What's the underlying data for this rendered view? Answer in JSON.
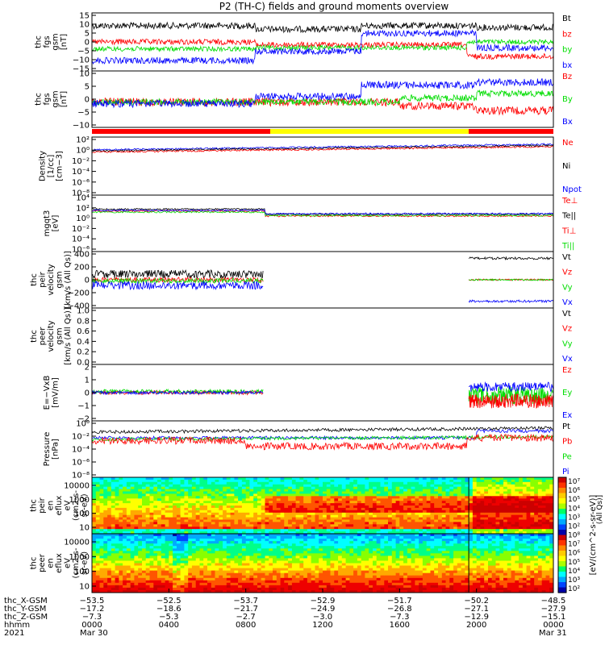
{
  "title": "P2 (TH-C) fields and ground moments overview",
  "colors": {
    "black": "#000000",
    "red": "#ff0000",
    "green": "#00dd00",
    "blue": "#0000ff",
    "yellow": "#ffff00"
  },
  "chart_data": [
    {
      "type": "line",
      "ylabel": [
        "thc",
        "fgs",
        "gsm",
        "[nT]"
      ],
      "ylim": [
        -15,
        15
      ],
      "yticks": [
        "15",
        "10",
        "5",
        "0",
        "−5",
        "−10",
        "−15"
      ],
      "legend": [
        {
          "name": "Bt",
          "color": "black"
        },
        {
          "name": "bz",
          "color": "red"
        },
        {
          "name": "by",
          "color": "green"
        },
        {
          "name": "bx",
          "color": "blue"
        }
      ]
    },
    {
      "type": "line",
      "ylabel": [
        "thc",
        "fgs",
        "gsm",
        "[nT]"
      ],
      "ylim": [
        -15,
        15
      ],
      "yticks": [
        "10",
        "5",
        "0",
        "−5",
        "−10"
      ],
      "legend": [
        {
          "name": "Bz",
          "color": "red"
        },
        {
          "name": "By",
          "color": "green"
        },
        {
          "name": "Bx",
          "color": "blue"
        }
      ]
    },
    {
      "type": "line",
      "ylabel": [
        "Density",
        "[1/cc]",
        "[cm−3]"
      ],
      "yscale": "log",
      "yticks": [
        "10²",
        "10⁰",
        "10⁻²",
        "10⁻⁴",
        "10⁻⁶",
        "10⁻⁸"
      ],
      "legend": [
        {
          "name": "Ne",
          "color": "red"
        },
        {
          "name": "Ni",
          "color": "black"
        },
        {
          "name": "Npot",
          "color": "blue"
        }
      ]
    },
    {
      "type": "line",
      "ylabel": [
        "mgqt3",
        "[eV]"
      ],
      "yscale": "log",
      "yticks": [
        "10⁴",
        "10²",
        "10⁰",
        "10⁻²",
        "10⁻⁴",
        "10⁻⁶"
      ],
      "legend": [
        {
          "name": "Te⊥",
          "color": "red"
        },
        {
          "name": "Te||",
          "color": "black"
        },
        {
          "name": "Ti⊥",
          "color": "red"
        },
        {
          "name": "Ti||",
          "color": "green"
        }
      ]
    },
    {
      "type": "line",
      "ylabel": [
        "thc",
        "peir",
        "velocity",
        "gsm",
        "[km/s (All Qs)]"
      ],
      "ylim": [
        -400,
        400
      ],
      "yticks": [
        "400",
        "200",
        "0",
        "−200",
        "−400"
      ],
      "legend": [
        {
          "name": "Vt",
          "color": "black"
        },
        {
          "name": "Vz",
          "color": "red"
        },
        {
          "name": "Vy",
          "color": "green"
        },
        {
          "name": "Vx",
          "color": "blue"
        }
      ]
    },
    {
      "type": "line",
      "ylabel": [
        "thc",
        "peer",
        "velocity",
        "gsm",
        "[km/s (All Qs)]"
      ],
      "ylim": [
        0,
        1
      ],
      "yticks": [
        "1.0",
        "0.8",
        "0.6",
        "0.4",
        "0.2",
        "0.0"
      ],
      "legend": [
        {
          "name": "Vt",
          "color": "black"
        },
        {
          "name": "Vz",
          "color": "red"
        },
        {
          "name": "Vy",
          "color": "green"
        },
        {
          "name": "Vx",
          "color": "blue"
        }
      ]
    },
    {
      "type": "line",
      "ylabel": [
        "E=−VxB",
        "[mV/m]"
      ],
      "ylim": [
        -3,
        3
      ],
      "yticks": [
        "2",
        "1",
        "0",
        "−1",
        "−2"
      ],
      "legend": [
        {
          "name": "Ez",
          "color": "red"
        },
        {
          "name": "Ey",
          "color": "green"
        },
        {
          "name": "Ex",
          "color": "blue"
        }
      ]
    },
    {
      "type": "line",
      "ylabel": [
        "Pressure",
        "[nPa]"
      ],
      "yscale": "log",
      "yticks": [
        "10⁰",
        "10⁻²",
        "10⁻⁴",
        "10⁻⁶",
        "10⁻⁸"
      ],
      "legend": [
        {
          "name": "Pt",
          "color": "black"
        },
        {
          "name": "Pb",
          "color": "red"
        },
        {
          "name": "Pe",
          "color": "green"
        },
        {
          "name": "Pi",
          "color": "blue"
        }
      ]
    },
    {
      "type": "heatmap",
      "ylabel": [
        "thc",
        "peir",
        "en",
        "eflux",
        "eV",
        "(cm2-s-",
        "sr-eV)"
      ],
      "yticks": [
        "10000",
        "1000",
        "100",
        "10"
      ]
    },
    {
      "type": "heatmap",
      "ylabel": [
        "thc",
        "peer",
        "en",
        "eflux",
        "eV",
        "(cm2-s-",
        "sr-eV)"
      ],
      "yticks": [
        "10000",
        "1000",
        "100",
        "10"
      ]
    }
  ],
  "colorbar": {
    "ticks": [
      "10⁷",
      "10⁶",
      "10⁵",
      "10⁴",
      "10³",
      "10²",
      "10⁸",
      "10⁷",
      "10⁶",
      "10⁵",
      "10⁴",
      "10³",
      "10²"
    ],
    "label": "[eV/(cm^2-s-sr-eV)]",
    "label2": "(All Qs)]"
  },
  "xaxis": {
    "rows": [
      {
        "label": "thc_X-GSM",
        "values": [
          "−53.5",
          "−52.5",
          "−53.7",
          "−52.9",
          "−51.7",
          "−50.2",
          "−48.5"
        ]
      },
      {
        "label": "thc_Y-GSM",
        "values": [
          "−17.2",
          "−18.6",
          "−21.7",
          "−24.9",
          "−26.8",
          "−27.1",
          "−27.9"
        ]
      },
      {
        "label": "thc_Z-GSM",
        "values": [
          "−7.3",
          "−5.3",
          "−2.7",
          "−3.0",
          "−7.3",
          "−12.9",
          "−15.1"
        ]
      },
      {
        "label": "hhmm",
        "values": [
          "0000",
          "0400",
          "0800",
          "1200",
          "1600",
          "2000",
          "0000"
        ]
      }
    ],
    "year": "2021",
    "date_start": "Mar 30",
    "date_end": "Mar 31"
  }
}
